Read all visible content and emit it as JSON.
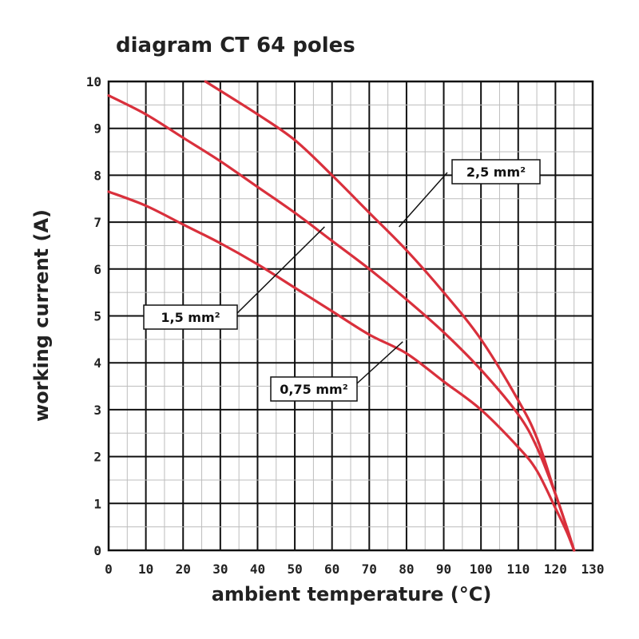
{
  "chart_data": {
    "type": "line",
    "title": "diagram CT 64 poles",
    "xlabel": "ambient temperature (°C)",
    "ylabel": "working current (A)",
    "xlim": [
      0,
      130
    ],
    "ylim": [
      0,
      10
    ],
    "x_ticks": [
      "0",
      "10",
      "20",
      "30",
      "40",
      "50",
      "60",
      "70",
      "80",
      "90",
      "100",
      "110",
      "120",
      "130"
    ],
    "y_ticks": [
      "0",
      "1",
      "2",
      "3",
      "4",
      "5",
      "6",
      "7",
      "8",
      "9",
      "10"
    ],
    "grid": true,
    "series": [
      {
        "name": "2,5 mm²",
        "color": "#d9303c",
        "points": [
          [
            26,
            10.0
          ],
          [
            40,
            9.3
          ],
          [
            50,
            8.75
          ],
          [
            60,
            8.0
          ],
          [
            70,
            7.2
          ],
          [
            80,
            6.4
          ],
          [
            90,
            5.5
          ],
          [
            100,
            4.5
          ],
          [
            110,
            3.2
          ],
          [
            115,
            2.4
          ],
          [
            120,
            1.2
          ],
          [
            123,
            0.5
          ],
          [
            125,
            0.0
          ]
        ]
      },
      {
        "name": "1,5 mm²",
        "color": "#d9303c",
        "points": [
          [
            0,
            9.7
          ],
          [
            10,
            9.3
          ],
          [
            20,
            8.8
          ],
          [
            30,
            8.3
          ],
          [
            40,
            7.75
          ],
          [
            50,
            7.2
          ],
          [
            60,
            6.6
          ],
          [
            70,
            6.0
          ],
          [
            80,
            5.35
          ],
          [
            90,
            4.65
          ],
          [
            100,
            3.85
          ],
          [
            110,
            2.9
          ],
          [
            115,
            2.2
          ],
          [
            120,
            1.2
          ],
          [
            123,
            0.5
          ],
          [
            125,
            0.0
          ]
        ]
      },
      {
        "name": "0,75 mm²",
        "color": "#d9303c",
        "points": [
          [
            0,
            7.65
          ],
          [
            10,
            7.35
          ],
          [
            20,
            6.95
          ],
          [
            30,
            6.55
          ],
          [
            40,
            6.1
          ],
          [
            50,
            5.6
          ],
          [
            60,
            5.1
          ],
          [
            70,
            4.6
          ],
          [
            80,
            4.2
          ],
          [
            90,
            3.6
          ],
          [
            100,
            3.0
          ],
          [
            110,
            2.2
          ],
          [
            115,
            1.7
          ],
          [
            120,
            0.9
          ],
          [
            123,
            0.4
          ],
          [
            125,
            0.0
          ]
        ]
      }
    ],
    "annotations": [
      {
        "text": "2,5 mm²",
        "series": 0
      },
      {
        "text": "1,5 mm²",
        "series": 1
      },
      {
        "text": "0,75 mm²",
        "series": 2
      }
    ]
  }
}
